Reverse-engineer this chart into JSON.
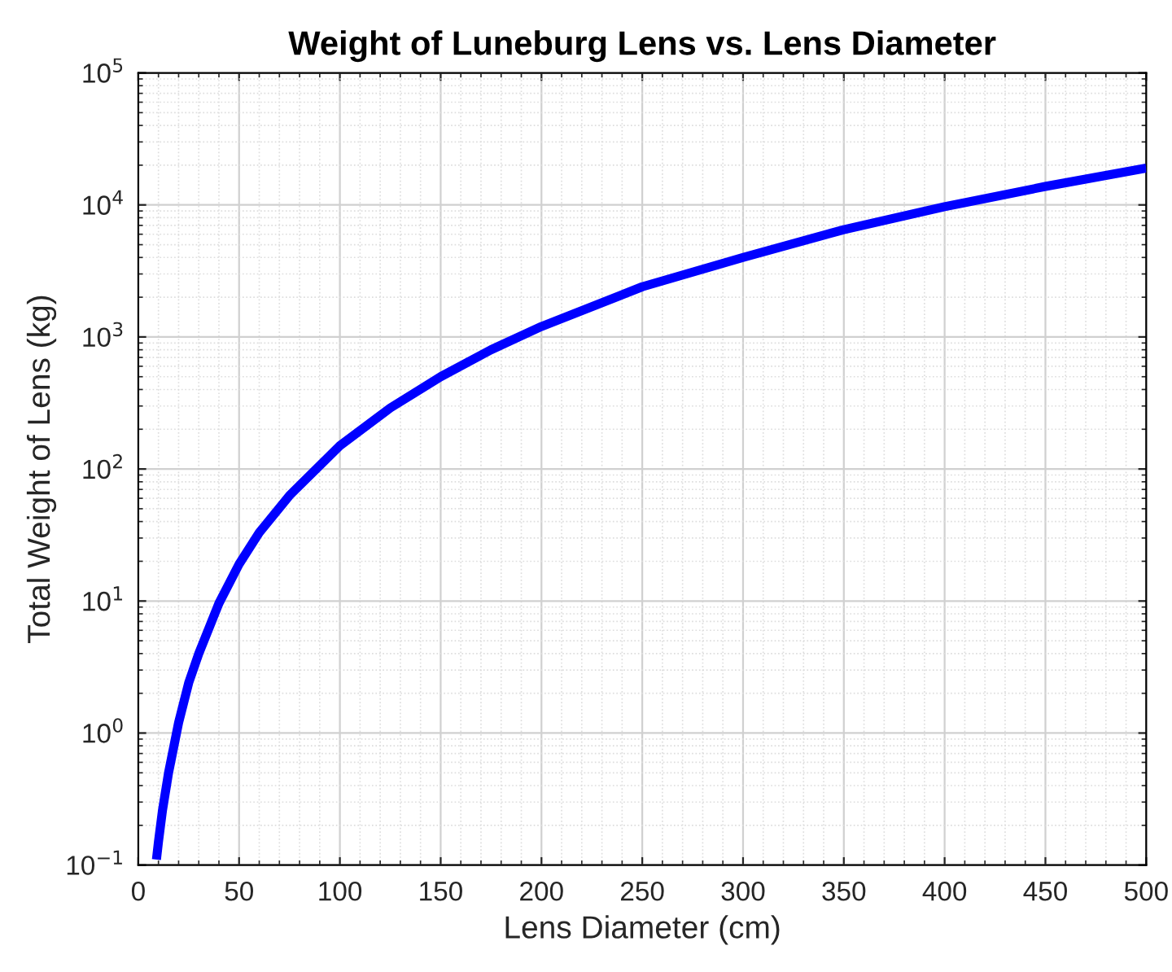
{
  "chart_data": {
    "type": "line",
    "title": "Weight of Luneburg Lens vs. Lens Diameter",
    "xlabel": "Lens Diameter (cm)",
    "ylabel": "Total Weight of Lens (kg)",
    "x": [
      9,
      10,
      12,
      15,
      20,
      25,
      30,
      40,
      50,
      60,
      75,
      100,
      125,
      150,
      175,
      200,
      250,
      300,
      350,
      400,
      450,
      500
    ],
    "series": [
      {
        "color": "#0000ff",
        "values": [
          0.11,
          0.15,
          0.26,
          0.5,
          1.2,
          2.4,
          4,
          9.6,
          19,
          33,
          63,
          150,
          290,
          500,
          800,
          1200,
          2400,
          4000,
          6500,
          9700,
          13800,
          19000
        ]
      }
    ],
    "log": "y",
    "grid": true,
    "marker": "none",
    "line_style": "solid",
    "xlim": [
      0,
      500
    ],
    "xticks": [
      0,
      50,
      100,
      150,
      200,
      250,
      300,
      350,
      400,
      450,
      500
    ],
    "ylim": [
      0.1,
      100000
    ],
    "yticks": [
      {
        "value": 0.1,
        "label": "10$^{−1}$"
      },
      {
        "value": 1,
        "label": "10$^{0}$"
      },
      {
        "value": 10,
        "label": "10$^{1}$"
      },
      {
        "value": 100,
        "label": "10$^{2}$"
      },
      {
        "value": 1000,
        "label": "10$^{3}$"
      },
      {
        "value": 10000,
        "label": "10$^{4}$"
      },
      {
        "value": 100000,
        "label": "10$^{5}$"
      }
    ]
  }
}
